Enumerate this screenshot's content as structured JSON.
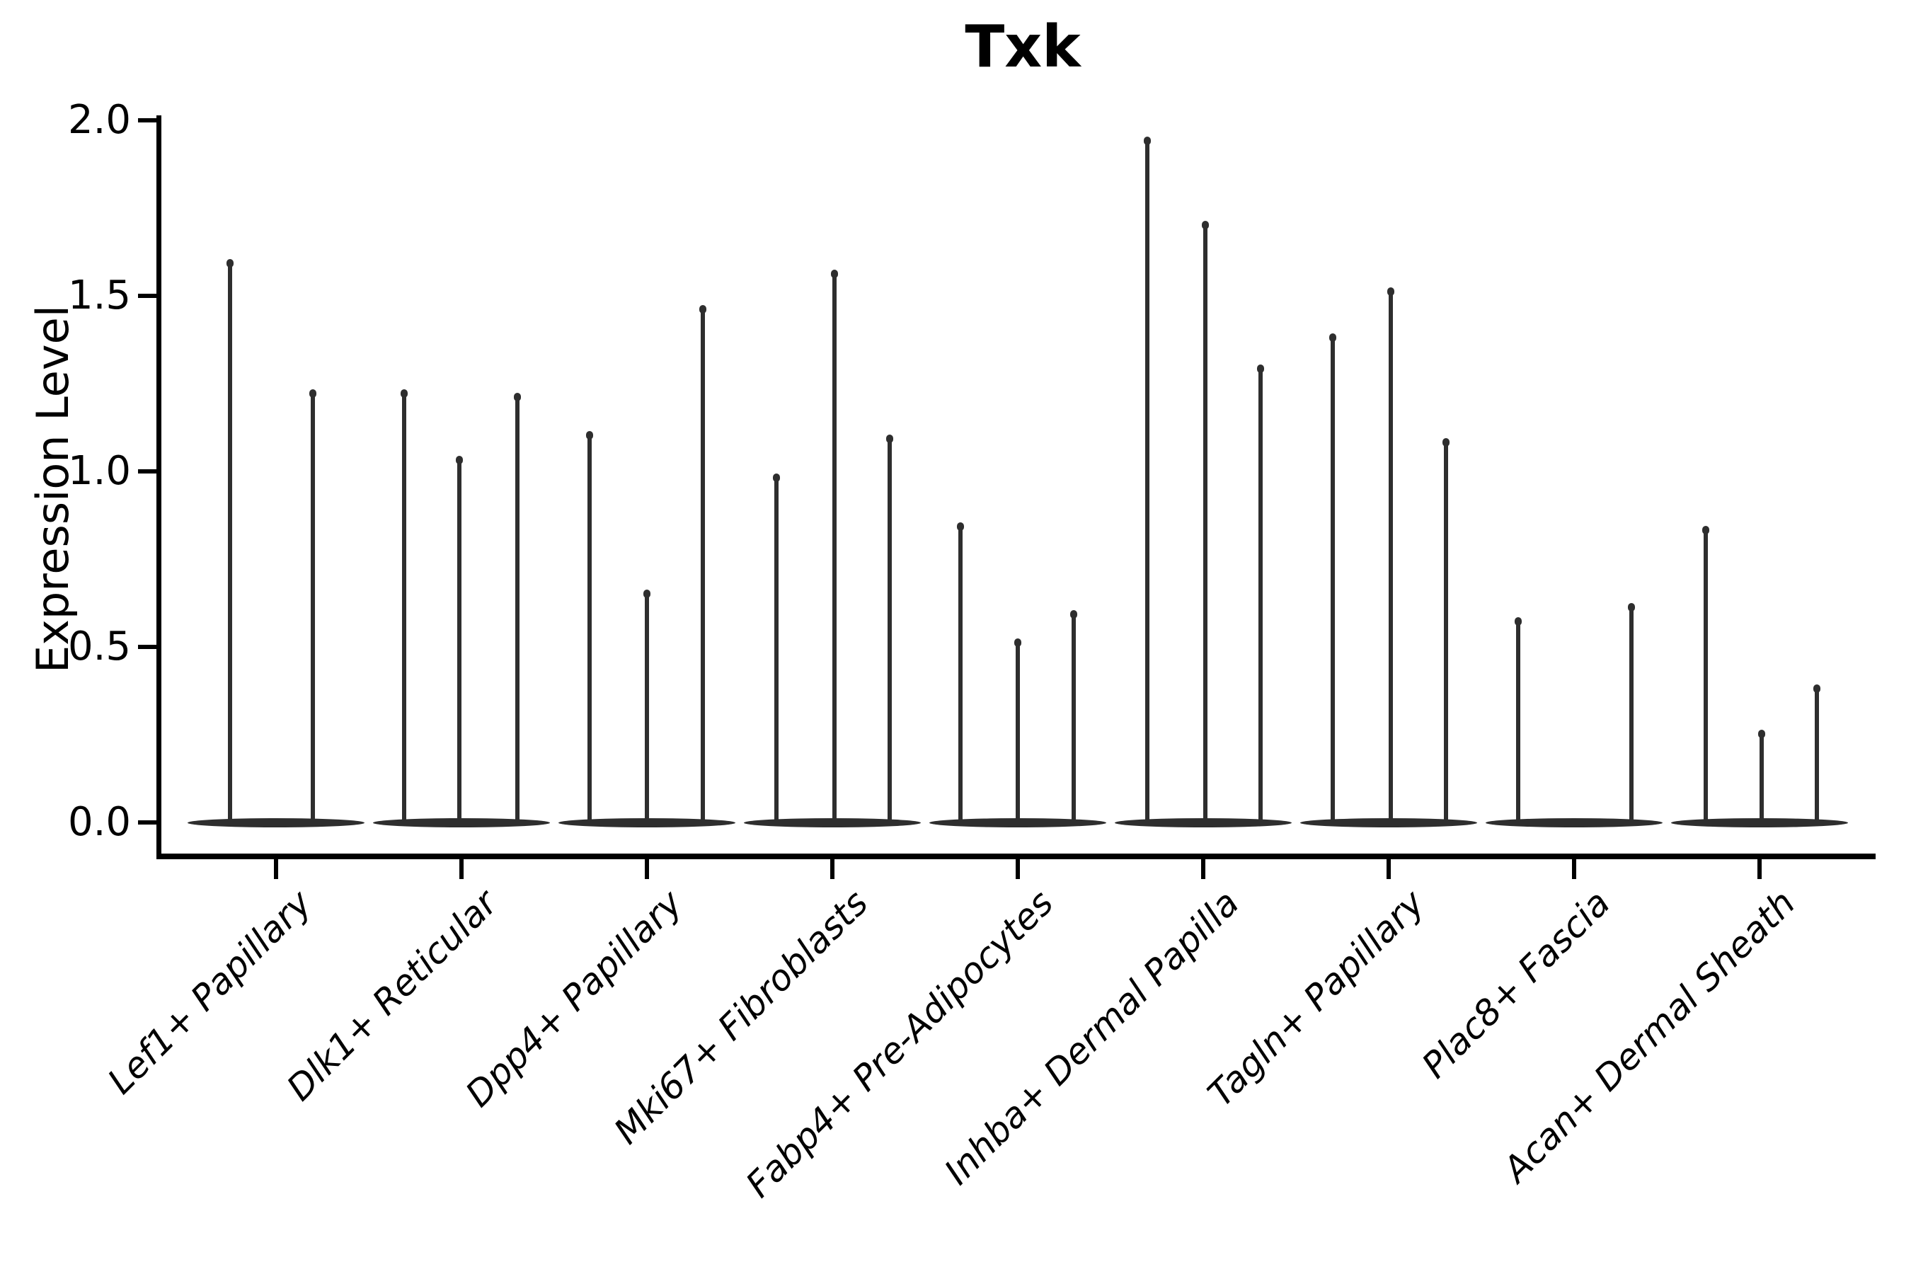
{
  "figure_title": "Txk",
  "y_axis": {
    "label": "Expression Level",
    "tick_labels": [
      "2.0",
      "1.5",
      "1.0",
      "0.5",
      "0.0"
    ]
  },
  "x_axis": {
    "categories": [
      "Lef1+ Papillary",
      "Dlk1+ Reticular",
      "Dpp4+ Papillary",
      "Mki67+ Fibroblasts",
      "Fabp4+ Pre-Adipocytes",
      "Inhba+ Dermal Papilla",
      "Tagln+ Papillary",
      "Plac8+ Fascia",
      "Acan+ Dermal Sheath"
    ]
  },
  "style": {
    "ink_color": "#2e2e2e",
    "axis_color": "#000000",
    "text_color": "#000000",
    "background": "#ffffff"
  },
  "chart_data": {
    "type": "violin",
    "title": "Txk",
    "xlabel": "",
    "ylabel": "Expression Level",
    "ylim": [
      -0.1,
      2.0
    ],
    "yticks": [
      0.0,
      0.5,
      1.0,
      1.5,
      2.0
    ],
    "grid": false,
    "legend": "none",
    "x_tick_rotation_deg": 45,
    "x_tick_fontstyle": "italic",
    "baseline_lens_per_group": true,
    "categories": [
      "Lef1+ Papillary",
      "Dlk1+ Reticular",
      "Dpp4+ Papillary",
      "Mki67+ Fibroblasts",
      "Fabp4+ Pre-Adipocytes",
      "Inhba+ Dermal Papilla",
      "Tagln+ Papillary",
      "Plac8+ Fascia",
      "Acan+ Dermal Sheath"
    ],
    "groups": [
      {
        "category": "Lef1+ Papillary",
        "violins": [
          {
            "pos": 0.25,
            "max": 1.6
          },
          {
            "pos": 0.7,
            "max": 1.23
          }
        ]
      },
      {
        "category": "Dlk1+ Reticular",
        "violins": [
          {
            "pos": 0.19,
            "max": 1.23
          },
          {
            "pos": 0.49,
            "max": 1.04
          },
          {
            "pos": 0.8,
            "max": 1.22
          }
        ]
      },
      {
        "category": "Dpp4+ Papillary",
        "violins": [
          {
            "pos": 0.19,
            "max": 1.11
          },
          {
            "pos": 0.5,
            "max": 0.66
          },
          {
            "pos": 0.8,
            "max": 1.47
          }
        ]
      },
      {
        "category": "Mki67+ Fibroblasts",
        "violins": [
          {
            "pos": 0.2,
            "max": 0.99
          },
          {
            "pos": 0.51,
            "max": 1.57
          },
          {
            "pos": 0.81,
            "max": 1.1
          }
        ]
      },
      {
        "category": "Fabp4+ Pre-Adipocytes",
        "violins": [
          {
            "pos": 0.19,
            "max": 0.85
          },
          {
            "pos": 0.5,
            "max": 0.52
          },
          {
            "pos": 0.8,
            "max": 0.6
          }
        ]
      },
      {
        "category": "Inhba+ Dermal Papilla",
        "violins": [
          {
            "pos": 0.2,
            "max": 1.95
          },
          {
            "pos": 0.51,
            "max": 1.71
          },
          {
            "pos": 0.81,
            "max": 1.3
          }
        ]
      },
      {
        "category": "Tagln+ Papillary",
        "violins": [
          {
            "pos": 0.2,
            "max": 1.39
          },
          {
            "pos": 0.51,
            "max": 1.52
          },
          {
            "pos": 0.81,
            "max": 1.09
          }
        ]
      },
      {
        "category": "Plac8+ Fascia",
        "violins": [
          {
            "pos": 0.2,
            "max": 0.58
          },
          {
            "pos": 0.81,
            "max": 0.62
          }
        ]
      },
      {
        "category": "Acan+ Dermal Sheath",
        "violins": [
          {
            "pos": 0.21,
            "max": 0.84
          },
          {
            "pos": 0.51,
            "max": 0.26
          },
          {
            "pos": 0.81,
            "max": 0.39
          }
        ]
      }
    ]
  }
}
